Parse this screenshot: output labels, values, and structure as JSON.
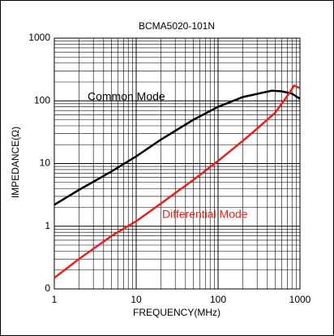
{
  "chart_data": {
    "type": "line",
    "title": "BCMA5020-101N",
    "x_label": "FREQUENCY(MHz)",
    "y_label": "IMPEDANCE(Ω)",
    "x_log": true,
    "y_log": true,
    "grid": true,
    "minor_grid": true,
    "xlim": [
      1,
      1000
    ],
    "xticks": [
      1,
      10,
      100,
      1000
    ],
    "ylim": [
      0.1,
      1000
    ],
    "yticks": [
      {
        "value": 0.1,
        "label": "0"
      },
      1,
      10,
      100,
      1000
    ],
    "series": [
      {
        "name": "Common Mode",
        "color": "#000000",
        "x": [
          1,
          2,
          5,
          10,
          20,
          50,
          100,
          200,
          450,
          600,
          800,
          1000
        ],
        "values": [
          2.2,
          3.8,
          7.5,
          13,
          24,
          50,
          80,
          115,
          145,
          142,
          130,
          108
        ]
      },
      {
        "name": "Differential Mode",
        "color": "#e8201c",
        "x": [
          1,
          2,
          5,
          10,
          20,
          50,
          100,
          200,
          300,
          500,
          700,
          850,
          1000
        ],
        "values": [
          0.15,
          0.3,
          0.7,
          1.2,
          2.3,
          5.5,
          11,
          23,
          36,
          65,
          120,
          175,
          160
        ]
      }
    ]
  }
}
